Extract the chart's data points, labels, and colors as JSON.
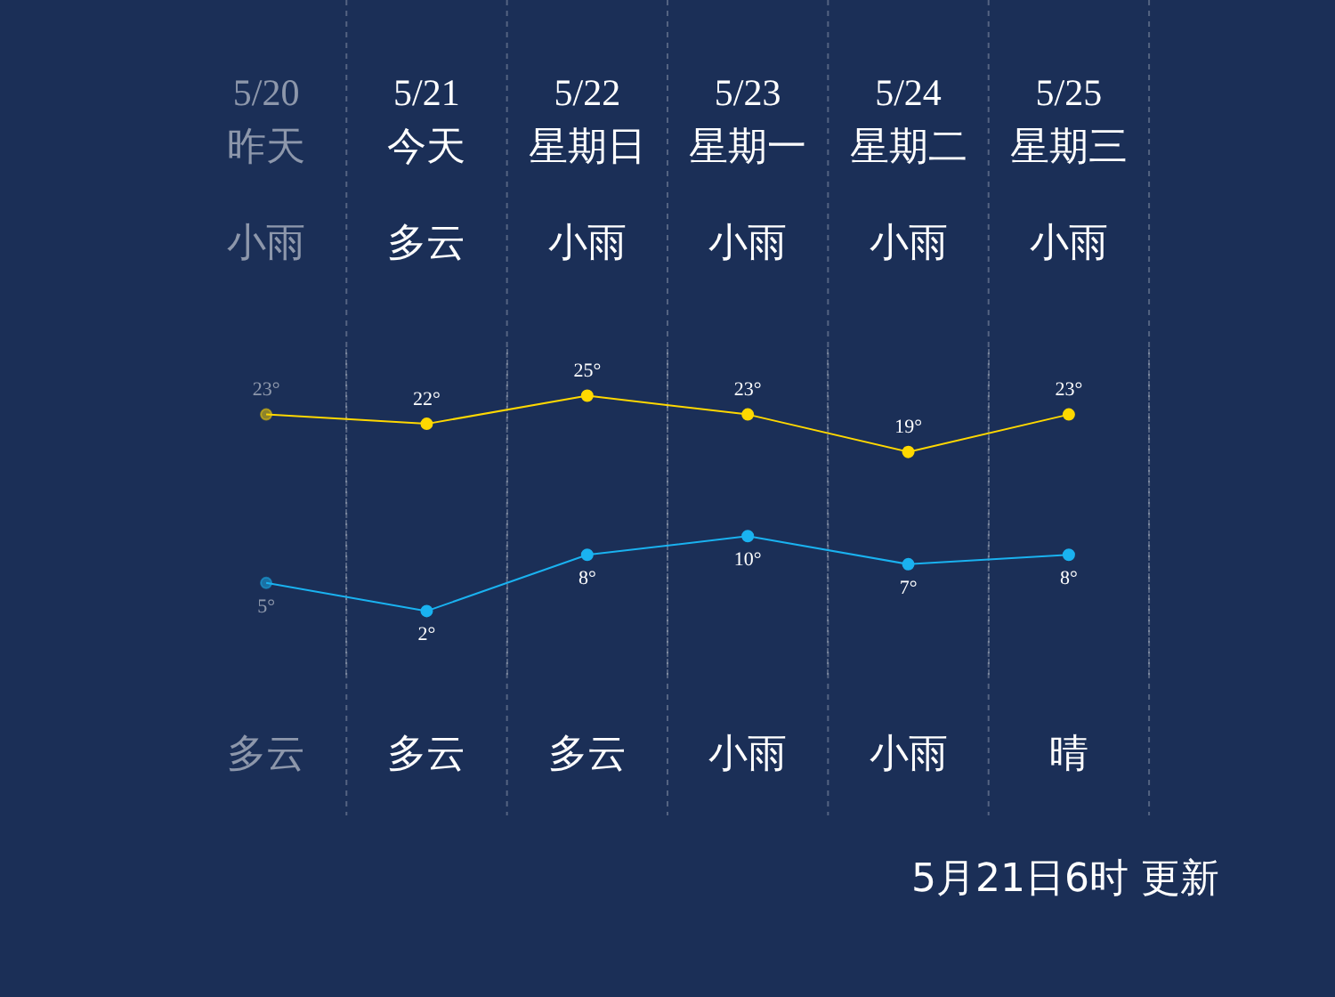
{
  "chart_data": {
    "type": "line",
    "categories": [
      "5/20",
      "5/21",
      "5/22",
      "5/23",
      "5/24",
      "5/25"
    ],
    "series": [
      {
        "color": "#ffd800",
        "values": [
          23,
          22,
          25,
          23,
          19,
          23
        ],
        "value_labels": [
          "23°",
          "22°",
          "25°",
          "23°",
          "19°",
          "23°"
        ]
      },
      {
        "color": "#1ab2f0",
        "values": [
          5,
          2,
          8,
          10,
          7,
          8
        ],
        "value_labels": [
          "5°",
          "2°",
          "8°",
          "10°",
          "7°",
          "8°"
        ]
      }
    ],
    "annotations": [
      "昨天",
      "今天",
      "星期日",
      "星期一",
      "星期二",
      "星期三",
      "小雨",
      "多云",
      "小雨",
      "小雨",
      "小雨",
      "小雨",
      "多云",
      "多云",
      "多云",
      "小雨",
      "小雨",
      "晴",
      "5月21日6时 更新"
    ],
    "grid": "x",
    "marker": "circle",
    "legend": false
  }
}
